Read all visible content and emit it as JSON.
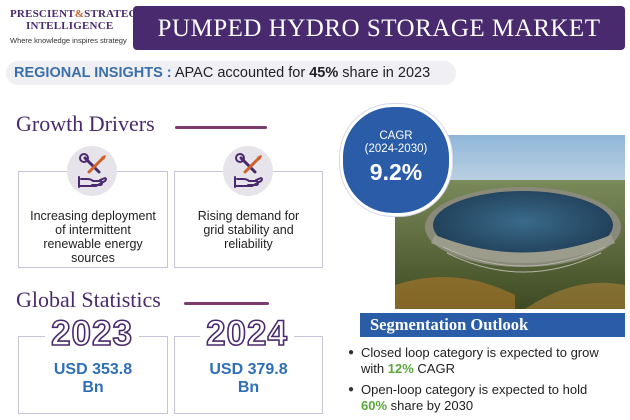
{
  "logo": {
    "line1": "PRESCIENT",
    "amp": "&",
    "line1b": "STRATEGIC",
    "line2": "INTELLIGENCE",
    "tagline": "Where knowledge inspires strategy"
  },
  "title": "PUMPED HYDRO STORAGE MARKET",
  "regional": {
    "label": "REGIONAL INSIGHTS :",
    "text_before": "APAC accounted for",
    "highlight": "45%",
    "text_after": "share in 2023"
  },
  "growth_drivers": {
    "title": "Growth Drivers",
    "cards": [
      {
        "icon": "hand-wrench-screwdriver-icon",
        "text_lines": [
          "Increasing deployment",
          "of intermittent",
          "renewable energy",
          "sources"
        ]
      },
      {
        "icon": "hand-wrench-screwdriver-icon",
        "text_lines": [
          "Rising demand for",
          "grid stability and",
          "reliability"
        ]
      }
    ]
  },
  "global_statistics": {
    "title": "Global Statistics",
    "items": [
      {
        "year": "2023",
        "value_line1": "USD 353.8",
        "value_line2": "Bn"
      },
      {
        "year": "2024",
        "value_line1": "USD 379.8",
        "value_line2": "Bn"
      }
    ]
  },
  "cagr": {
    "label_line1": "CAGR",
    "label_line2": "(2024-2030)",
    "value": "9.2%"
  },
  "segmentation": {
    "title": "Segmentation Outlook",
    "items": [
      {
        "before": "Closed loop category is expected to grow with",
        "highlight": "12%",
        "after": "CAGR"
      },
      {
        "before": "Open-loop category is expected to hold",
        "highlight": "60%",
        "after": "share by 2030"
      }
    ]
  },
  "colors": {
    "purple": "#4a2a6e",
    "blue": "#2a5ca8",
    "green": "#5aa83a",
    "orange": "#d0612b",
    "stat_blue": "#2f6fb8"
  }
}
